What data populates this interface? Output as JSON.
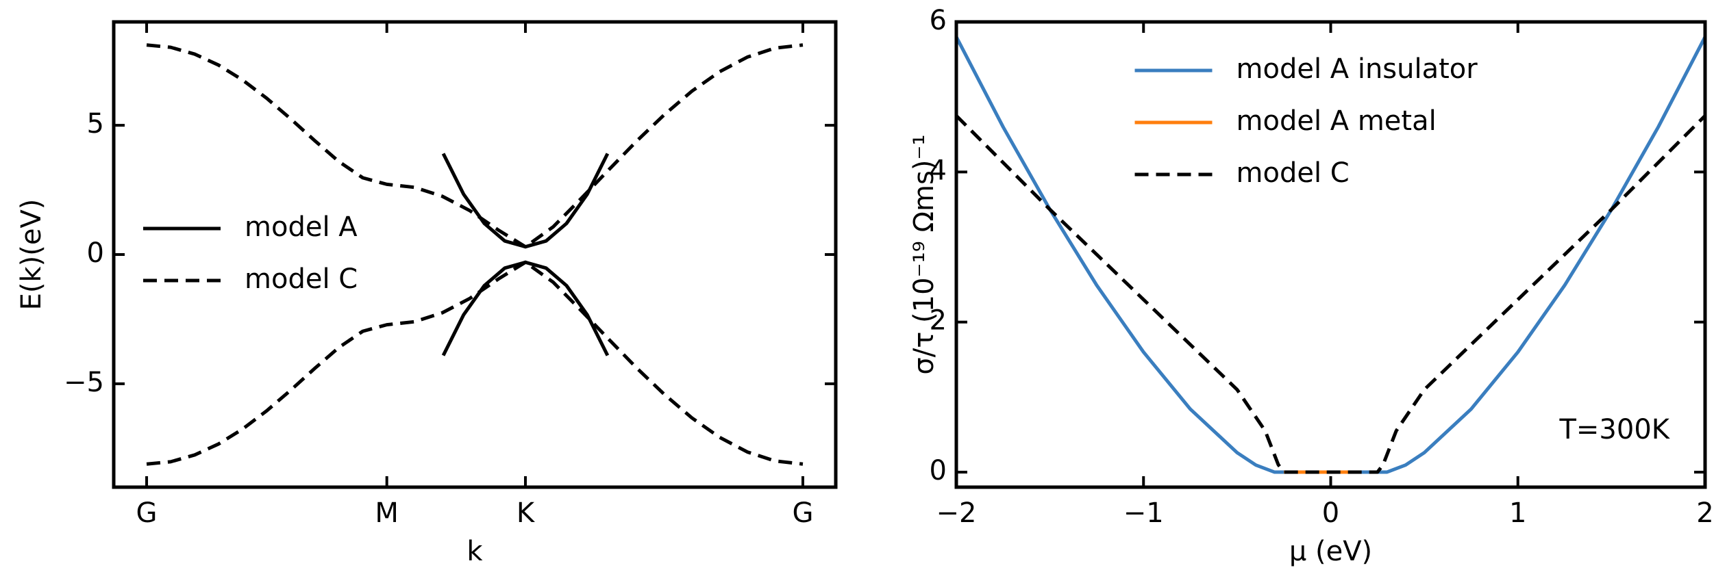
{
  "chart_data": [
    {
      "type": "line",
      "xlabel": "k",
      "ylabel": "E(k)(eV)",
      "xlim": [
        -0.137,
        2.869
      ],
      "ylim": [
        -9,
        9
      ],
      "xticks": [
        {
          "value": 0,
          "label": "G"
        },
        {
          "value": 1,
          "label": "M"
        },
        {
          "value": 1.577,
          "label": "K"
        },
        {
          "value": 2.732,
          "label": "G"
        }
      ],
      "yticks": [
        {
          "value": -5,
          "label": "−5"
        },
        0,
        5
      ],
      "legend": "center left",
      "series": [
        {
          "name": "model A",
          "color": "#000000",
          "linestyle": "solid",
          "x": [
            1.235,
            1.32,
            1.406,
            1.491,
            1.577,
            1.663,
            1.748,
            1.834,
            1.919
          ],
          "bands": [
            [
              3.904,
              2.327,
              1.201,
              0.525,
              0.3,
              0.525,
              1.201,
              2.327,
              3.904
            ],
            [
              -3.904,
              -2.327,
              -1.201,
              -0.525,
              -0.3,
              -0.525,
              -1.201,
              -2.327,
              -3.904
            ]
          ]
        },
        {
          "name": "model C",
          "color": "#000000",
          "linestyle": "dashed",
          "x": [
            0,
            0.1,
            0.2,
            0.3,
            0.4,
            0.5,
            0.6,
            0.7,
            0.8,
            0.9,
            1,
            1.115,
            1.231,
            1.346,
            1.462,
            1.577,
            1.693,
            1.808,
            1.924,
            2.039,
            2.155,
            2.27,
            2.386,
            2.501,
            2.617,
            2.732
          ],
          "bands": [
            [
              8.106,
              8.017,
              7.754,
              7.327,
              6.749,
              6.045,
              5.247,
              4.405,
              3.599,
              2.968,
              2.717,
              2.6,
              2.254,
              1.696,
              0.961,
              0.3,
              1.074,
              2.157,
              3.278,
              4.379,
              5.408,
              6.32,
              7.075,
              7.639,
              7.988,
              8.106
            ],
            [
              -8.106,
              -8.017,
              -7.754,
              -7.327,
              -6.749,
              -6.045,
              -5.247,
              -4.405,
              -3.599,
              -2.968,
              -2.717,
              -2.6,
              -2.254,
              -1.696,
              -0.961,
              -0.3,
              -1.074,
              -2.157,
              -3.278,
              -4.379,
              -5.408,
              -6.32,
              -7.075,
              -7.639,
              -7.988,
              -8.106
            ]
          ]
        }
      ]
    },
    {
      "type": "line",
      "xlabel": "μ (eV)",
      "ylabel": "σ/τ (10⁻¹⁹ Ωms)⁻¹",
      "xlim": [
        -2,
        2
      ],
      "ylim": [
        -0.2,
        6
      ],
      "xticks": [
        {
          "value": -2,
          "label": "−2"
        },
        {
          "value": -1,
          "label": "−1"
        },
        0,
        1,
        2
      ],
      "yticks": [
        0,
        2,
        4,
        6
      ],
      "legend": "upper center",
      "annotation": "T=300K",
      "series": [
        {
          "name": "model A insulator",
          "color": "#3a7ebf",
          "linestyle": "solid",
          "x": [
            -2,
            -1.75,
            -1.5,
            -1.25,
            -1,
            -0.75,
            -0.5,
            -0.4,
            -0.3,
            0,
            0.3,
            0.4,
            0.5,
            0.75,
            1,
            1.25,
            1.5,
            1.75,
            2
          ],
          "values": [
            5.8,
            4.6,
            3.5,
            2.49,
            1.6,
            0.84,
            0.26,
            0.095,
            0,
            0,
            0,
            0.095,
            0.26,
            0.84,
            1.6,
            2.49,
            3.5,
            4.6,
            5.8
          ]
        },
        {
          "name": "model A metal",
          "color": "#ff7f0e",
          "linestyle": "solid",
          "x": [
            -0.25,
            0,
            0.15
          ],
          "values": [
            0,
            0,
            0
          ]
        },
        {
          "name": "model C",
          "color": "#000000",
          "linestyle": "dashed",
          "x": [
            -2,
            -1.5,
            -1,
            -0.5,
            -0.35,
            -0.28,
            -0.25,
            0,
            0.25,
            0.28,
            0.35,
            0.5,
            1,
            1.5,
            2
          ],
          "values": [
            4.75,
            3.5,
            2.3,
            1.1,
            0.55,
            0.1,
            0,
            0,
            0,
            0.1,
            0.55,
            1.1,
            2.3,
            3.5,
            4.75
          ]
        }
      ]
    }
  ]
}
